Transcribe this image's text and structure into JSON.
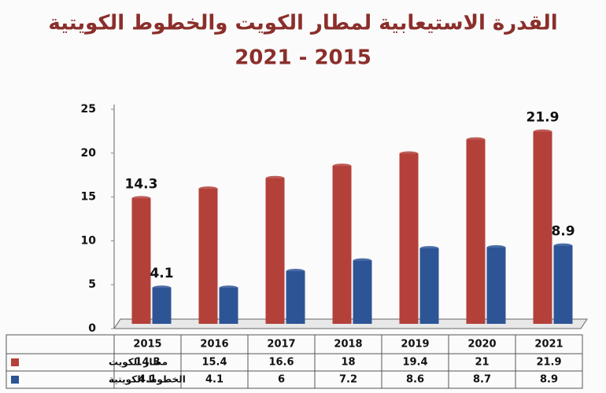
{
  "chart_data": {
    "type": "bar",
    "title": "القدرة الاستيعابية لمطار الكويت والخطوط الكويتية",
    "subtitle": "2021 - 2015",
    "categories": [
      "2015",
      "2016",
      "2017",
      "2018",
      "2019",
      "2020",
      "2021"
    ],
    "series": [
      {
        "name": "مطار الكويت",
        "color": "#b3413a",
        "values": [
          14.3,
          15.4,
          16.6,
          18,
          19.4,
          21,
          21.9
        ]
      },
      {
        "name": "الخطوط الكويتية",
        "color": "#2d5596",
        "values": [
          4.1,
          4.1,
          6,
          7.2,
          8.6,
          8.7,
          8.9
        ]
      }
    ],
    "ylim": [
      0,
      25
    ],
    "yticks": [
      0,
      5,
      10,
      15,
      20,
      25
    ]
  }
}
